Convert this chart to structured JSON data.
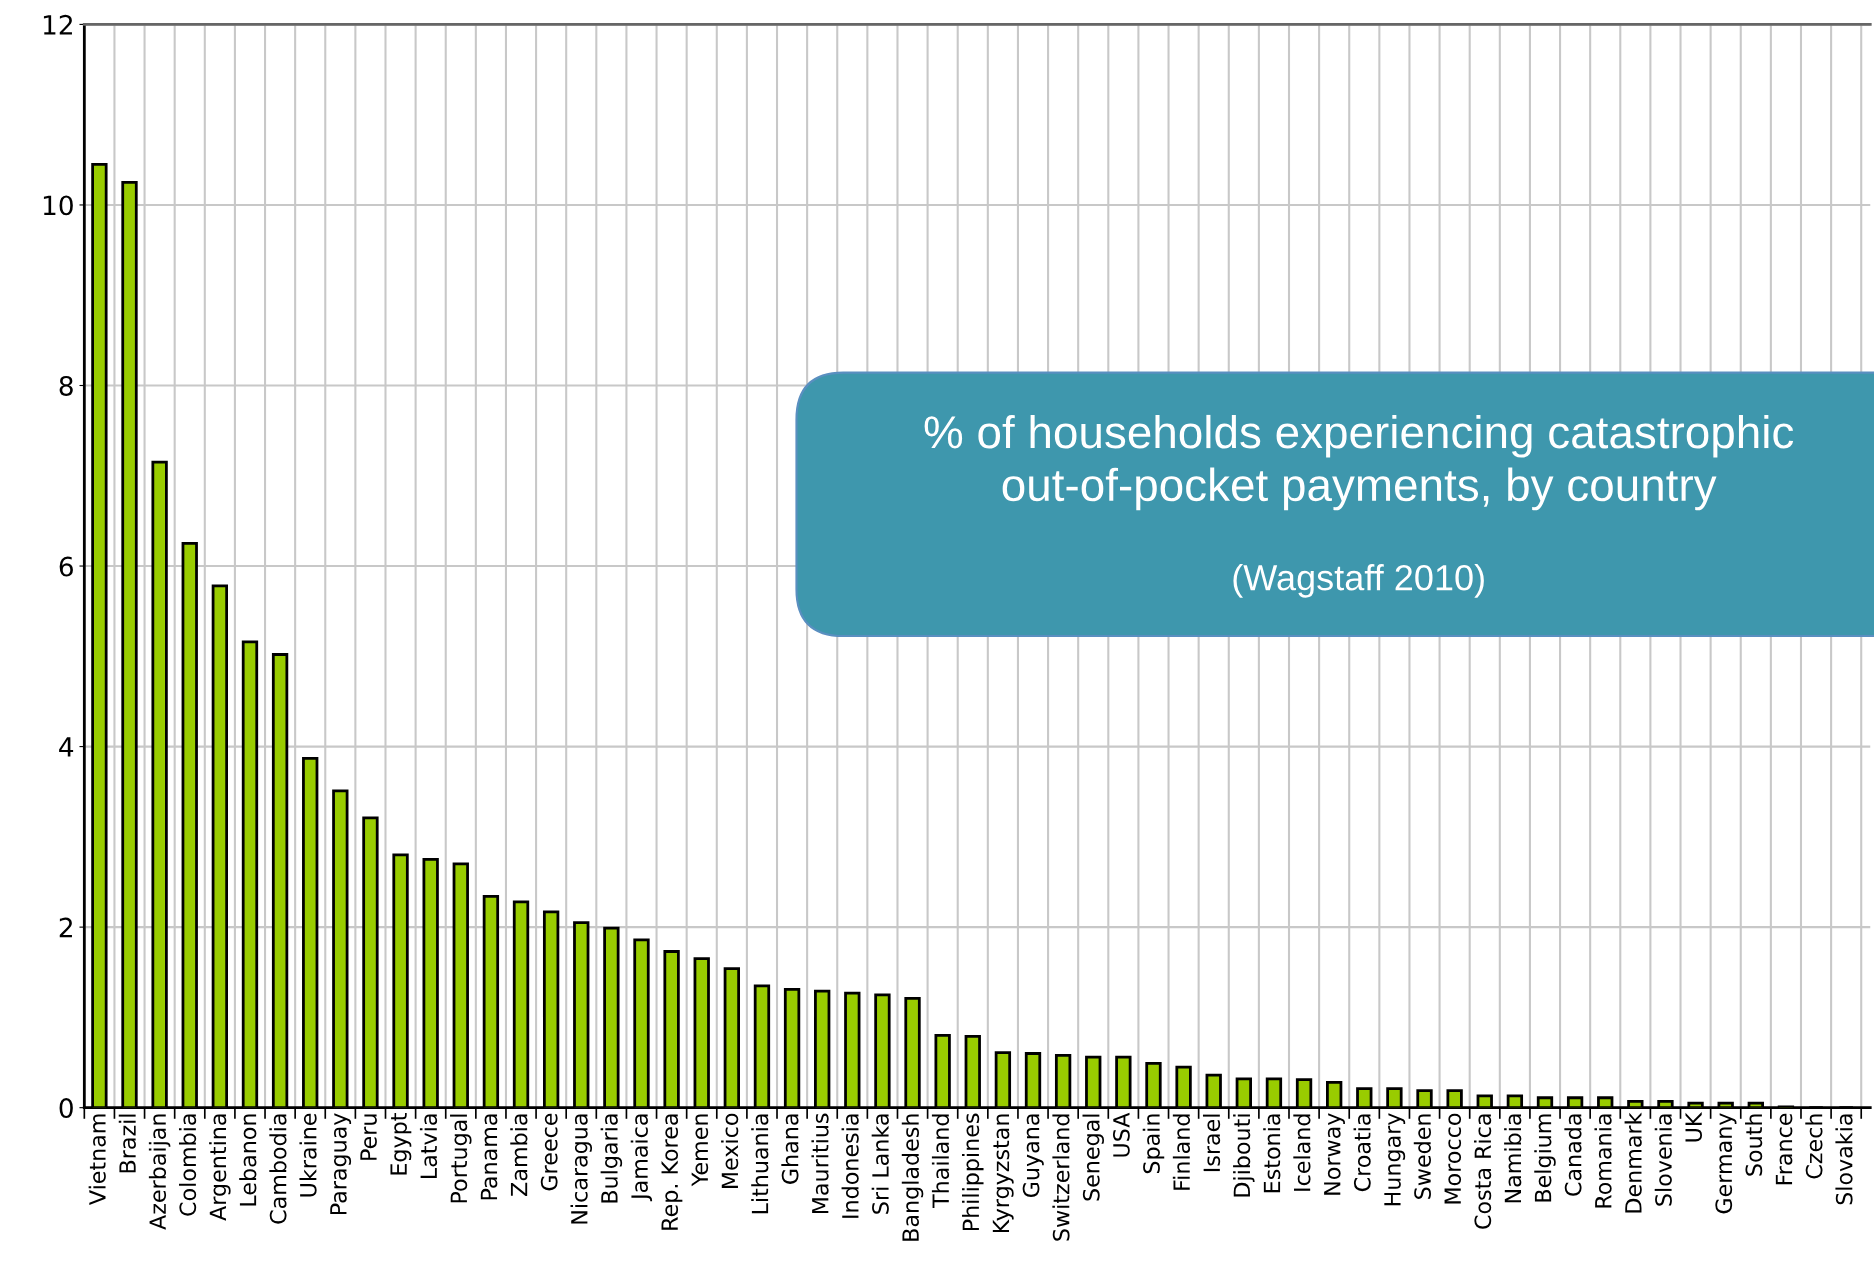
{
  "chart_data": {
    "type": "bar",
    "title": "% of households experiencing catastrophic out-of-pocket payments, by country",
    "subtitle": "(Wagstaff 2010)",
    "categories": [
      "Vietnam",
      "Brazil",
      "Azerbaijan",
      "Colombia",
      "Argentina",
      "Lebanon",
      "Cambodia",
      "Ukraine",
      "Paraguay",
      "Peru",
      "Egypt",
      "Latvia",
      "Portugal",
      "Panama",
      "Zambia",
      "Greece",
      "Nicaragua",
      "Bulgaria",
      "Jamaica",
      "Rep. Korea",
      "Yemen",
      "Mexico",
      "Lithuania",
      "Ghana",
      "Mauritius",
      "Indonesia",
      "Sri Lanka",
      "Bangladesh",
      "Thailand",
      "Philippines",
      "Kyrgyzstan",
      "Guyana",
      "Switzerland",
      "Senegal",
      "USA",
      "Spain",
      "Finland",
      "Israel",
      "Djibouti",
      "Estonia",
      "Iceland",
      "Norway",
      "Croatia",
      "Hungary",
      "Sweden",
      "Morocco",
      "Costa Rica",
      "Namibia",
      "Belgium",
      "Canada",
      "Romania",
      "Denmark",
      "Slovenia",
      "UK",
      "Germany",
      "South",
      "France",
      "Czech",
      "Slovakia"
    ],
    "values": [
      10.45,
      10.25,
      7.15,
      6.25,
      5.78,
      5.16,
      5.02,
      3.87,
      3.51,
      3.21,
      2.8,
      2.75,
      2.7,
      2.34,
      2.28,
      2.17,
      2.05,
      1.99,
      1.86,
      1.73,
      1.65,
      1.54,
      1.35,
      1.31,
      1.29,
      1.27,
      1.25,
      1.21,
      0.8,
      0.79,
      0.61,
      0.6,
      0.58,
      0.56,
      0.56,
      0.49,
      0.45,
      0.36,
      0.32,
      0.32,
      0.31,
      0.28,
      0.21,
      0.21,
      0.19,
      0.19,
      0.13,
      0.13,
      0.11,
      0.11,
      0.11,
      0.07,
      0.07,
      0.05,
      0.05,
      0.05,
      0.01,
      0,
      0
    ],
    "color": "#99cc00",
    "ylim": [
      0,
      12
    ],
    "yticks": [
      0,
      2,
      4,
      6,
      8,
      10,
      12
    ],
    "grid": true
  }
}
